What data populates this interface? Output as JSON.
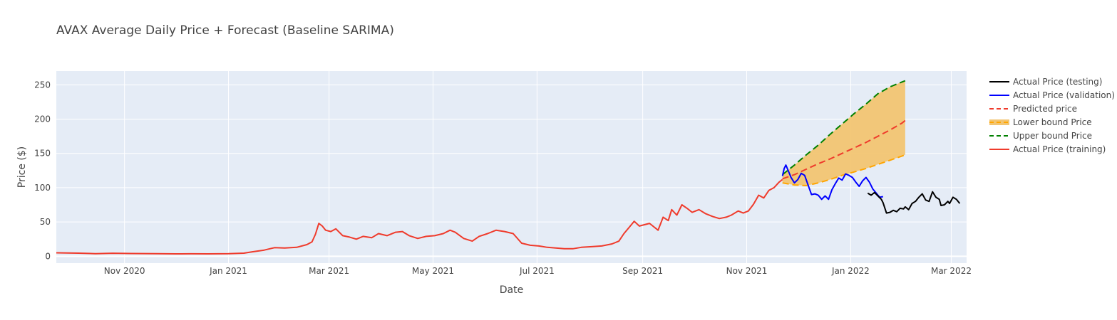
{
  "chart_data": {
    "type": "line",
    "title": "AVAX Average Daily Price + Forecast (Baseline SARIMA)",
    "xlabel": "Date",
    "ylabel": "Price ($)",
    "xlim": [
      "2020-09-22",
      "2022-03-10"
    ],
    "ylim": [
      -10,
      270
    ],
    "x_ticks": [
      {
        "date": "2020-11-01",
        "label": "Nov 2020"
      },
      {
        "date": "2021-01-01",
        "label": "Jan 2021"
      },
      {
        "date": "2021-03-01",
        "label": "Mar 2021"
      },
      {
        "date": "2021-05-01",
        "label": "May 2021"
      },
      {
        "date": "2021-07-01",
        "label": "Jul 2021"
      },
      {
        "date": "2021-09-01",
        "label": "Sep 2021"
      },
      {
        "date": "2021-11-01",
        "label": "Nov 2021"
      },
      {
        "date": "2022-01-01",
        "label": "Jan 2022"
      },
      {
        "date": "2022-03-01",
        "label": "Mar 2022"
      }
    ],
    "y_ticks": [
      0,
      50,
      100,
      150,
      200,
      250
    ],
    "grid": true,
    "legend_position": "right",
    "series": [
      {
        "name": "Actual Price (testing)",
        "color": "#000000",
        "dash": "solid",
        "points": [
          [
            "2022-01-11",
            92
          ],
          [
            "2022-01-13",
            89
          ],
          [
            "2022-01-15",
            93
          ],
          [
            "2022-01-17",
            88
          ],
          [
            "2022-01-19",
            83
          ],
          [
            "2022-01-20",
            78
          ],
          [
            "2022-01-22",
            63
          ],
          [
            "2022-01-24",
            64
          ],
          [
            "2022-01-26",
            67
          ],
          [
            "2022-01-28",
            65
          ],
          [
            "2022-01-30",
            70
          ],
          [
            "2022-02-01",
            69
          ],
          [
            "2022-02-02",
            72
          ],
          [
            "2022-02-04",
            68
          ],
          [
            "2022-02-06",
            77
          ],
          [
            "2022-02-08",
            80
          ],
          [
            "2022-02-10",
            86
          ],
          [
            "2022-02-12",
            91
          ],
          [
            "2022-02-14",
            82
          ],
          [
            "2022-02-16",
            80
          ],
          [
            "2022-02-18",
            94
          ],
          [
            "2022-02-20",
            86
          ],
          [
            "2022-02-22",
            83
          ],
          [
            "2022-02-23",
            74
          ],
          [
            "2022-02-25",
            75
          ],
          [
            "2022-02-27",
            80
          ],
          [
            "2022-02-28",
            77
          ],
          [
            "2022-03-02",
            86
          ],
          [
            "2022-03-04",
            83
          ],
          [
            "2022-03-06",
            77
          ]
        ]
      },
      {
        "name": "Actual Price (validation)",
        "color": "#0000ff",
        "dash": "solid",
        "points": [
          [
            "2021-11-22",
            117
          ],
          [
            "2021-11-23",
            128
          ],
          [
            "2021-11-24",
            133
          ],
          [
            "2021-11-25",
            127
          ],
          [
            "2021-11-27",
            115
          ],
          [
            "2021-11-29",
            107
          ],
          [
            "2021-12-01",
            112
          ],
          [
            "2021-12-03",
            121
          ],
          [
            "2021-12-05",
            118
          ],
          [
            "2021-12-07",
            104
          ],
          [
            "2021-12-09",
            90
          ],
          [
            "2021-12-11",
            91
          ],
          [
            "2021-12-13",
            89
          ],
          [
            "2021-12-15",
            83
          ],
          [
            "2021-12-17",
            88
          ],
          [
            "2021-12-19",
            83
          ],
          [
            "2021-12-21",
            97
          ],
          [
            "2021-12-23",
            106
          ],
          [
            "2021-12-25",
            114
          ],
          [
            "2021-12-27",
            111
          ],
          [
            "2021-12-29",
            120
          ],
          [
            "2021-12-31",
            118
          ],
          [
            "2022-01-02",
            115
          ],
          [
            "2022-01-04",
            108
          ],
          [
            "2022-01-06",
            102
          ],
          [
            "2022-01-08",
            110
          ],
          [
            "2022-01-10",
            115
          ],
          [
            "2022-01-12",
            108
          ],
          [
            "2022-01-14",
            98
          ],
          [
            "2022-01-16",
            92
          ],
          [
            "2022-01-18",
            86
          ],
          [
            "2022-01-20",
            87
          ]
        ]
      },
      {
        "name": "Predicted price",
        "color": "#ef3b2c",
        "dash": "dash",
        "points": [
          [
            "2021-11-22",
            113
          ],
          [
            "2021-11-29",
            119
          ],
          [
            "2021-12-06",
            127
          ],
          [
            "2021-12-13",
            135
          ],
          [
            "2021-12-20",
            142
          ],
          [
            "2021-12-27",
            150
          ],
          [
            "2022-01-03",
            158
          ],
          [
            "2022-01-10",
            166
          ],
          [
            "2022-01-17",
            175
          ],
          [
            "2022-01-24",
            184
          ],
          [
            "2022-01-31",
            194
          ],
          [
            "2022-02-02",
            198
          ]
        ]
      },
      {
        "name": "Lower bound Price",
        "color": "#ffa500",
        "fill": "#f2c572",
        "dash": "dash",
        "points": [
          [
            "2021-11-22",
            107
          ],
          [
            "2021-11-29",
            104
          ],
          [
            "2021-12-06",
            103
          ],
          [
            "2021-12-13",
            107
          ],
          [
            "2021-12-20",
            112
          ],
          [
            "2021-12-27",
            118
          ],
          [
            "2022-01-03",
            123
          ],
          [
            "2022-01-10",
            128
          ],
          [
            "2022-01-17",
            134
          ],
          [
            "2022-01-24",
            140
          ],
          [
            "2022-01-31",
            146
          ],
          [
            "2022-02-02",
            148
          ]
        ]
      },
      {
        "name": "Upper bound Price",
        "color": "#008000",
        "dash": "dash",
        "points": [
          [
            "2021-11-22",
            119
          ],
          [
            "2021-11-29",
            133
          ],
          [
            "2021-12-06",
            148
          ],
          [
            "2021-12-13",
            162
          ],
          [
            "2021-12-20",
            178
          ],
          [
            "2021-12-27",
            193
          ],
          [
            "2022-01-03",
            208
          ],
          [
            "2022-01-10",
            222
          ],
          [
            "2022-01-17",
            237
          ],
          [
            "2022-01-24",
            247
          ],
          [
            "2022-01-31",
            254
          ],
          [
            "2022-02-02",
            256
          ]
        ]
      },
      {
        "name": "Actual Price (training)",
        "color": "#ef3b2c",
        "dash": "solid",
        "points": [
          [
            "2020-09-22",
            5
          ],
          [
            "2020-10-05",
            4.5
          ],
          [
            "2020-10-15",
            3.8
          ],
          [
            "2020-10-25",
            4.4
          ],
          [
            "2020-11-05",
            4
          ],
          [
            "2020-11-20",
            3.7
          ],
          [
            "2020-12-01",
            3.5
          ],
          [
            "2020-12-10",
            3.6
          ],
          [
            "2020-12-20",
            3.5
          ],
          [
            "2021-01-01",
            3.7
          ],
          [
            "2021-01-10",
            4.5
          ],
          [
            "2021-01-15",
            6.5
          ],
          [
            "2021-01-22",
            9
          ],
          [
            "2021-01-28",
            12.5
          ],
          [
            "2021-02-03",
            12
          ],
          [
            "2021-02-10",
            13
          ],
          [
            "2021-02-16",
            17
          ],
          [
            "2021-02-19",
            21
          ],
          [
            "2021-02-21",
            32
          ],
          [
            "2021-02-23",
            48
          ],
          [
            "2021-02-25",
            44
          ],
          [
            "2021-02-27",
            38
          ],
          [
            "2021-03-02",
            36
          ],
          [
            "2021-03-05",
            40
          ],
          [
            "2021-03-09",
            30
          ],
          [
            "2021-03-13",
            28
          ],
          [
            "2021-03-17",
            25
          ],
          [
            "2021-03-21",
            29
          ],
          [
            "2021-03-26",
            27
          ],
          [
            "2021-03-30",
            33
          ],
          [
            "2021-04-04",
            30
          ],
          [
            "2021-04-09",
            35
          ],
          [
            "2021-04-13",
            36
          ],
          [
            "2021-04-17",
            30
          ],
          [
            "2021-04-22",
            26
          ],
          [
            "2021-04-27",
            29
          ],
          [
            "2021-05-02",
            30
          ],
          [
            "2021-05-07",
            33
          ],
          [
            "2021-05-11",
            38
          ],
          [
            "2021-05-14",
            35
          ],
          [
            "2021-05-19",
            26
          ],
          [
            "2021-05-24",
            22
          ],
          [
            "2021-05-28",
            29
          ],
          [
            "2021-06-02",
            33
          ],
          [
            "2021-06-07",
            38
          ],
          [
            "2021-06-12",
            36
          ],
          [
            "2021-06-17",
            33
          ],
          [
            "2021-06-22",
            19
          ],
          [
            "2021-06-27",
            16
          ],
          [
            "2021-07-02",
            15
          ],
          [
            "2021-07-07",
            13
          ],
          [
            "2021-07-12",
            12
          ],
          [
            "2021-07-17",
            11
          ],
          [
            "2021-07-22",
            11
          ],
          [
            "2021-07-27",
            13
          ],
          [
            "2021-08-02",
            14
          ],
          [
            "2021-08-08",
            15
          ],
          [
            "2021-08-14",
            18
          ],
          [
            "2021-08-18",
            22
          ],
          [
            "2021-08-21",
            33
          ],
          [
            "2021-08-24",
            42
          ],
          [
            "2021-08-27",
            51
          ],
          [
            "2021-08-30",
            44
          ],
          [
            "2021-09-02",
            46
          ],
          [
            "2021-09-05",
            48
          ],
          [
            "2021-09-08",
            42
          ],
          [
            "2021-09-10",
            38
          ],
          [
            "2021-09-13",
            57
          ],
          [
            "2021-09-16",
            52
          ],
          [
            "2021-09-18",
            68
          ],
          [
            "2021-09-21",
            60
          ],
          [
            "2021-09-24",
            75
          ],
          [
            "2021-09-27",
            70
          ],
          [
            "2021-09-30",
            64
          ],
          [
            "2021-10-04",
            68
          ],
          [
            "2021-10-08",
            62
          ],
          [
            "2021-10-12",
            58
          ],
          [
            "2021-10-16",
            55
          ],
          [
            "2021-10-20",
            57
          ],
          [
            "2021-10-23",
            60
          ],
          [
            "2021-10-27",
            66
          ],
          [
            "2021-10-30",
            63
          ],
          [
            "2021-11-02",
            66
          ],
          [
            "2021-11-05",
            76
          ],
          [
            "2021-11-08",
            89
          ],
          [
            "2021-11-11",
            85
          ],
          [
            "2021-11-14",
            96
          ],
          [
            "2021-11-17",
            100
          ],
          [
            "2021-11-20",
            108
          ],
          [
            "2021-11-22",
            112
          ]
        ]
      }
    ]
  }
}
